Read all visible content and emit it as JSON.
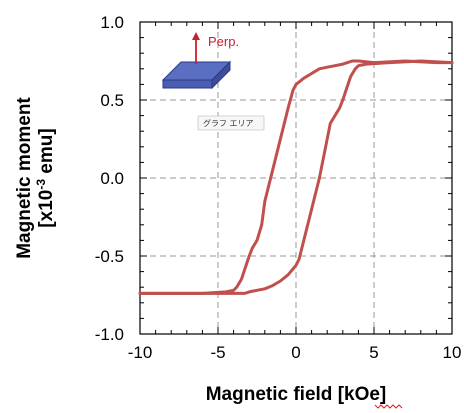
{
  "chart_data": {
    "type": "line",
    "xlabel": "Magnetic field [kOe]",
    "ylabel_line1": "Magnetic moment",
    "ylabel_line2_base": "[x10",
    "ylabel_line2_sup": "-3",
    "ylabel_line2_tail": " emu]",
    "xlim": [
      -10,
      10
    ],
    "ylim": [
      -1.0,
      1.0
    ],
    "xticks": [
      -10,
      -5,
      0,
      5,
      10
    ],
    "xtick_labels": [
      "-10",
      "-5",
      "0",
      "5",
      "10"
    ],
    "yticks": [
      1.0,
      0.5,
      0.0,
      -0.5,
      -1.0
    ],
    "ytick_labels": [
      "1.0",
      "0.5",
      "0.0",
      "-0.5",
      "-1.0"
    ],
    "grid": true,
    "line_color": "#c0504d",
    "series": [
      {
        "x": [
          10,
          8,
          6,
          4.5,
          4,
          3.8,
          3.5,
          3.2,
          3.0,
          2.8,
          2.5,
          2.2,
          2.0,
          1.5,
          1.0,
          0.5,
          0.2,
          0.0,
          -0.5,
          -1.0,
          -1.5,
          -2.0,
          -2.5,
          -3.0,
          -3.3,
          -3.6,
          -3.8,
          -4.0,
          -5.0,
          -7.0,
          -9.0,
          -10.0
        ],
        "y": [
          0.74,
          0.75,
          0.74,
          0.73,
          0.72,
          0.7,
          0.65,
          0.56,
          0.5,
          0.45,
          0.4,
          0.35,
          0.25,
          0.0,
          -0.2,
          -0.4,
          -0.52,
          -0.56,
          -0.62,
          -0.66,
          -0.69,
          -0.71,
          -0.72,
          -0.73,
          -0.74,
          -0.74,
          -0.74,
          -0.74,
          -0.74,
          -0.74,
          -0.74,
          -0.74
        ]
      },
      {
        "x": [
          -10,
          -8,
          -6,
          -4.5,
          -4,
          -3.8,
          -3.5,
          -3.2,
          -3.0,
          -2.8,
          -2.5,
          -2.2,
          -2.0,
          -1.5,
          -1.0,
          -0.5,
          -0.2,
          0.0,
          0.5,
          1.0,
          1.5,
          2.0,
          2.5,
          3.0,
          3.3,
          3.6,
          3.8,
          4.0,
          5.0,
          7.0,
          9.0,
          10.0
        ],
        "y": [
          -0.74,
          -0.74,
          -0.74,
          -0.73,
          -0.72,
          -0.7,
          -0.65,
          -0.56,
          -0.5,
          -0.45,
          -0.4,
          -0.3,
          -0.15,
          0.05,
          0.25,
          0.45,
          0.56,
          0.6,
          0.64,
          0.67,
          0.7,
          0.71,
          0.72,
          0.73,
          0.74,
          0.75,
          0.75,
          0.75,
          0.74,
          0.75,
          0.74,
          0.74
        ]
      }
    ],
    "inset_label": "Perp.",
    "graph_area_label": "グラフ エリア",
    "inset_arrow_color": "#cc1f2e",
    "inset_slab_color": "#5b6fc2"
  }
}
